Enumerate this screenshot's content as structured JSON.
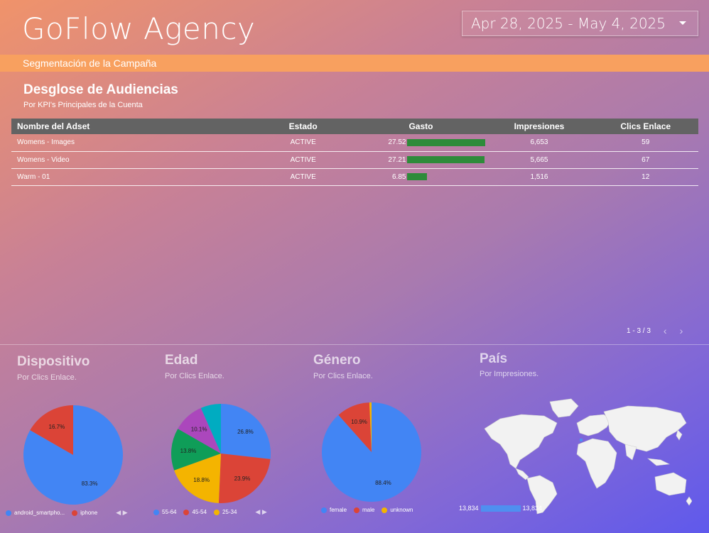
{
  "header": {
    "title": "GoFlow Agency",
    "date_range": "Apr 28, 2025 - May 4, 2025"
  },
  "section": {
    "label": "Segmentación de la Campaña"
  },
  "table": {
    "title": "Desglose de Audiencias",
    "subtitle": "Por KPI's Principales de la Cuenta",
    "columns": [
      "Nombre del Adset",
      "Estado",
      "Gasto",
      "Impresiones",
      "Clics Enlace"
    ],
    "rows": [
      {
        "name": "Womens - Images",
        "status": "ACTIVE",
        "spend": "27.52",
        "spend_value": 27.52,
        "impressions": "6,653",
        "clicks": "59"
      },
      {
        "name": "Womens - Video",
        "status": "ACTIVE",
        "spend": "27.21",
        "spend_value": 27.21,
        "impressions": "5,665",
        "clicks": "67"
      },
      {
        "name": "Warm - 01",
        "status": "ACTIVE",
        "spend": "6.85",
        "spend_value": 6.85,
        "impressions": "1,516",
        "clicks": "12"
      }
    ],
    "bar_color": "#2e8b3a",
    "pager": "1 - 3 / 3"
  },
  "panels": {
    "device": {
      "title": "Dispositivo",
      "subtitle": "Por Clics Enlace.",
      "legend": [
        "android_smartpho...",
        "iphone"
      ],
      "slices": [
        {
          "label": "83.3%",
          "value": 83.3,
          "color": "#4285f4"
        },
        {
          "label": "16.7%",
          "value": 16.7,
          "color": "#db4437"
        }
      ]
    },
    "age": {
      "title": "Edad",
      "subtitle": "Por Clics Enlace.",
      "legend": [
        "55-64",
        "45-54",
        "25-34"
      ],
      "slices": [
        {
          "label": "26.8%",
          "value": 26.8,
          "color": "#4285f4"
        },
        {
          "label": "23.9%",
          "value": 23.9,
          "color": "#db4437"
        },
        {
          "label": "18.8%",
          "value": 18.8,
          "color": "#f4b400"
        },
        {
          "label": "13.8%",
          "value": 13.8,
          "color": "#0f9d58"
        },
        {
          "label": "10.1%",
          "value": 10.1,
          "color": "#ab47bc"
        },
        {
          "label": "",
          "value": 6.6,
          "color": "#00acc1"
        }
      ]
    },
    "gender": {
      "title": "Género",
      "subtitle": "Por Clics Enlace.",
      "legend": [
        "female",
        "male",
        "unknown"
      ],
      "slices": [
        {
          "label": "88.4%",
          "value": 88.4,
          "color": "#4285f4"
        },
        {
          "label": "10.9%",
          "value": 10.9,
          "color": "#db4437"
        },
        {
          "label": "",
          "value": 0.7,
          "color": "#f4b400"
        }
      ]
    },
    "country": {
      "title": "País",
      "subtitle": "Por Impresiones.",
      "min": "13,834",
      "max": "13,834"
    }
  }
}
